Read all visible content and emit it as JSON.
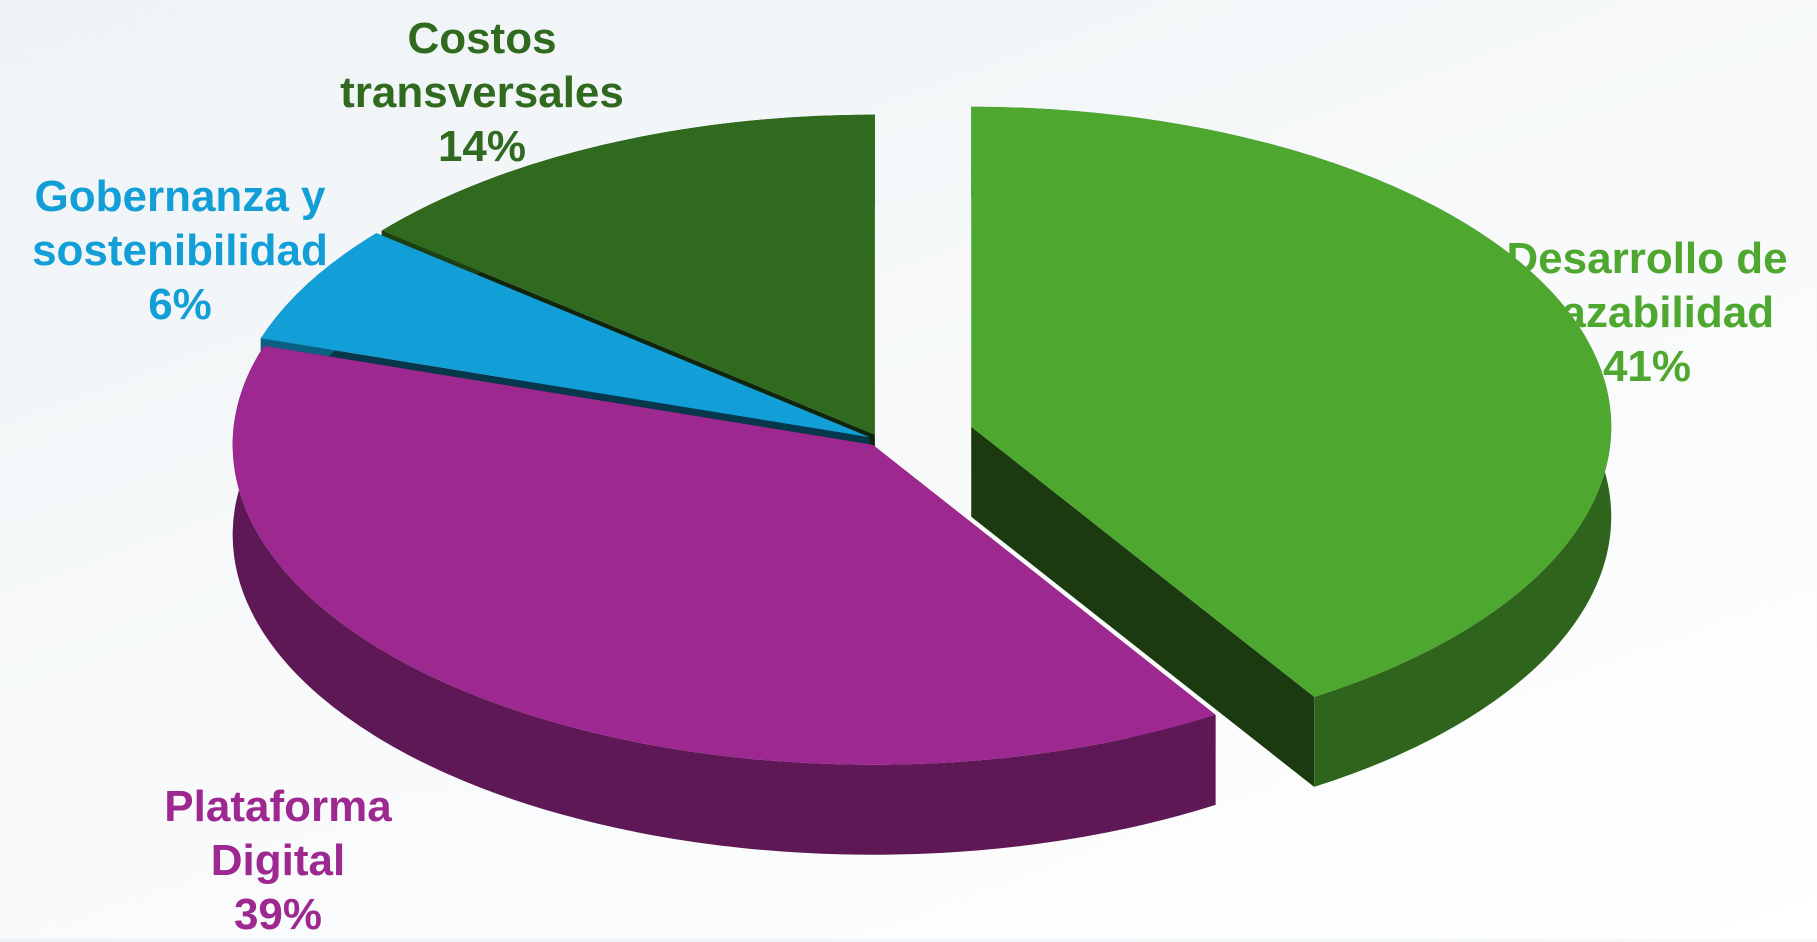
{
  "chart_data": {
    "type": "pie",
    "categories": [
      "Desarrollo de Trazabilidad",
      "Plataforma Digital",
      "Gobernanza y sostenibilidad",
      "Costos transversales"
    ],
    "values": [
      41,
      39,
      6,
      14
    ],
    "value_labels": [
      "41%",
      "39%",
      "6%",
      "14%"
    ],
    "colors": [
      "#4ea72e",
      "#9c2890",
      "#129ed6",
      "#2f6a1e"
    ]
  }
}
